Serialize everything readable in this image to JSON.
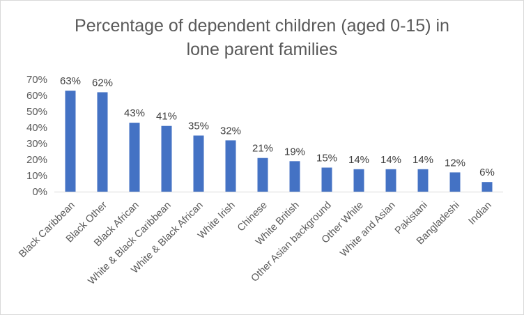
{
  "chart_data": {
    "type": "bar",
    "title_lines": [
      "Percentage of dependent  children (aged 0-15) in",
      "lone parent families"
    ],
    "categories": [
      "Black Caribbean",
      "Black Other",
      "Black African",
      "White & Black Caribbean",
      "White & Black African",
      "White Irish",
      "Chinese",
      "White British",
      "Other Asian background",
      "Other White",
      "White and Asian",
      "Pakistani",
      "Bangladeshi",
      "Indian"
    ],
    "values": [
      63,
      62,
      43,
      41,
      35,
      32,
      21,
      19,
      15,
      14,
      14,
      14,
      12,
      6
    ],
    "data_labels": [
      "63%",
      "62%",
      "43%",
      "41%",
      "35%",
      "32%",
      "21%",
      "19%",
      "15%",
      "14%",
      "14%",
      "14%",
      "12%",
      "6%"
    ],
    "yticks": [
      "0%",
      "10%",
      "20%",
      "30%",
      "40%",
      "50%",
      "60%",
      "70%"
    ],
    "ylim": [
      0,
      70
    ],
    "grid": false,
    "legend": "none",
    "bar_color": "#4472c4"
  }
}
